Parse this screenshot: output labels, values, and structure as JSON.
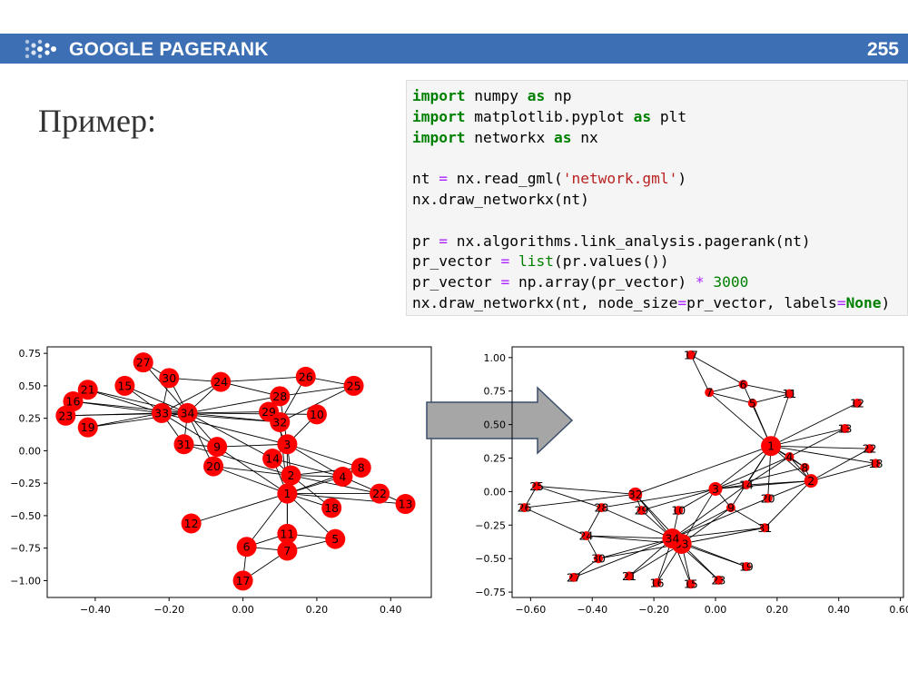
{
  "header": {
    "title": "GOOGLE PAGERANK",
    "page_number": "255",
    "bg_color": "#3d6fb4"
  },
  "heading": "Пример:",
  "code_lines": [
    [
      {
        "t": "import",
        "c": "kw"
      },
      {
        "t": " numpy "
      },
      {
        "t": "as",
        "c": "kw"
      },
      {
        "t": " np"
      }
    ],
    [
      {
        "t": "import",
        "c": "kw"
      },
      {
        "t": " matplotlib.pyplot "
      },
      {
        "t": "as",
        "c": "kw"
      },
      {
        "t": " plt"
      }
    ],
    [
      {
        "t": "import",
        "c": "kw"
      },
      {
        "t": " networkx "
      },
      {
        "t": "as",
        "c": "kw"
      },
      {
        "t": " nx"
      }
    ],
    [],
    [
      {
        "t": "nt "
      },
      {
        "t": "=",
        "c": "op"
      },
      {
        "t": " nx.read_gml("
      },
      {
        "t": "'network.gml'",
        "c": "str"
      },
      {
        "t": ")"
      }
    ],
    [
      {
        "t": "nx.draw_networkx(nt)"
      }
    ],
    [],
    [
      {
        "t": "pr "
      },
      {
        "t": "=",
        "c": "op"
      },
      {
        "t": " nx.algorithms.link_analysis.pagerank(nt)"
      }
    ],
    [
      {
        "t": "pr_vector "
      },
      {
        "t": "=",
        "c": "op"
      },
      {
        "t": " "
      },
      {
        "t": "list",
        "c": "fn"
      },
      {
        "t": "(pr.values())"
      }
    ],
    [
      {
        "t": "pr_vector "
      },
      {
        "t": "=",
        "c": "op"
      },
      {
        "t": " np.array(pr_vector) "
      },
      {
        "t": "*",
        "c": "op"
      },
      {
        "t": " "
      },
      {
        "t": "3000",
        "c": "num"
      }
    ],
    [
      {
        "t": "nx.draw_networkx(nt, node_size"
      },
      {
        "t": "=",
        "c": "op"
      },
      {
        "t": "pr_vector, labels"
      },
      {
        "t": "=",
        "c": "op"
      },
      {
        "t": "None",
        "c": "kw"
      },
      {
        "t": ")"
      }
    ]
  ],
  "chart_data": [
    {
      "type": "scatter",
      "title": "",
      "xlabel": "",
      "ylabel": "",
      "xlim": [
        -0.53,
        0.51
      ],
      "ylim": [
        -1.13,
        0.8
      ],
      "xticks": [
        -0.4,
        -0.2,
        0.0,
        0.2,
        0.4
      ],
      "yticks": [
        0.75,
        0.5,
        0.25,
        0.0,
        -0.25,
        -0.5,
        -0.75,
        -1.0
      ],
      "node_color": "#ff0000",
      "nodes": [
        {
          "id": "1",
          "x": 0.12,
          "y": -0.33
        },
        {
          "id": "2",
          "x": 0.13,
          "y": -0.19
        },
        {
          "id": "3",
          "x": 0.12,
          "y": 0.05
        },
        {
          "id": "4",
          "x": 0.27,
          "y": -0.2
        },
        {
          "id": "5",
          "x": 0.25,
          "y": -0.68
        },
        {
          "id": "6",
          "x": 0.01,
          "y": -0.74
        },
        {
          "id": "7",
          "x": 0.12,
          "y": -0.77
        },
        {
          "id": "8",
          "x": 0.32,
          "y": -0.13
        },
        {
          "id": "9",
          "x": -0.07,
          "y": 0.03
        },
        {
          "id": "10",
          "x": 0.2,
          "y": 0.28
        },
        {
          "id": "11",
          "x": 0.12,
          "y": -0.64
        },
        {
          "id": "12",
          "x": -0.14,
          "y": -0.56
        },
        {
          "id": "13",
          "x": 0.44,
          "y": -0.41
        },
        {
          "id": "14",
          "x": 0.08,
          "y": -0.06
        },
        {
          "id": "15",
          "x": -0.32,
          "y": 0.5
        },
        {
          "id": "16",
          "x": -0.46,
          "y": 0.38
        },
        {
          "id": "17",
          "x": 0.0,
          "y": -1.0
        },
        {
          "id": "18",
          "x": 0.24,
          "y": -0.44
        },
        {
          "id": "19",
          "x": -0.42,
          "y": 0.18
        },
        {
          "id": "20",
          "x": -0.08,
          "y": -0.12
        },
        {
          "id": "21",
          "x": -0.42,
          "y": 0.47
        },
        {
          "id": "22",
          "x": 0.37,
          "y": -0.33
        },
        {
          "id": "23",
          "x": -0.48,
          "y": 0.27
        },
        {
          "id": "24",
          "x": -0.06,
          "y": 0.53
        },
        {
          "id": "25",
          "x": 0.3,
          "y": 0.5
        },
        {
          "id": "26",
          "x": 0.17,
          "y": 0.57
        },
        {
          "id": "27",
          "x": -0.27,
          "y": 0.68
        },
        {
          "id": "28",
          "x": 0.1,
          "y": 0.42
        },
        {
          "id": "29",
          "x": 0.07,
          "y": 0.3
        },
        {
          "id": "30",
          "x": -0.2,
          "y": 0.56
        },
        {
          "id": "31",
          "x": -0.16,
          "y": 0.05
        },
        {
          "id": "32",
          "x": 0.1,
          "y": 0.22
        },
        {
          "id": "33",
          "x": -0.22,
          "y": 0.29
        },
        {
          "id": "34",
          "x": -0.15,
          "y": 0.29
        }
      ],
      "edges": [
        [
          "1",
          "2"
        ],
        [
          "1",
          "3"
        ],
        [
          "1",
          "4"
        ],
        [
          "1",
          "5"
        ],
        [
          "1",
          "6"
        ],
        [
          "1",
          "7"
        ],
        [
          "1",
          "8"
        ],
        [
          "1",
          "9"
        ],
        [
          "1",
          "11"
        ],
        [
          "1",
          "12"
        ],
        [
          "1",
          "13"
        ],
        [
          "1",
          "14"
        ],
        [
          "1",
          "18"
        ],
        [
          "1",
          "20"
        ],
        [
          "1",
          "22"
        ],
        [
          "1",
          "32"
        ],
        [
          "2",
          "3"
        ],
        [
          "2",
          "4"
        ],
        [
          "2",
          "8"
        ],
        [
          "2",
          "14"
        ],
        [
          "2",
          "18"
        ],
        [
          "2",
          "20"
        ],
        [
          "2",
          "22"
        ],
        [
          "2",
          "31"
        ],
        [
          "3",
          "4"
        ],
        [
          "3",
          "8"
        ],
        [
          "3",
          "9"
        ],
        [
          "3",
          "10"
        ],
        [
          "3",
          "14"
        ],
        [
          "3",
          "28"
        ],
        [
          "3",
          "29"
        ],
        [
          "3",
          "33"
        ],
        [
          "4",
          "8"
        ],
        [
          "4",
          "13"
        ],
        [
          "4",
          "14"
        ],
        [
          "5",
          "7"
        ],
        [
          "5",
          "11"
        ],
        [
          "6",
          "7"
        ],
        [
          "6",
          "11"
        ],
        [
          "6",
          "17"
        ],
        [
          "7",
          "17"
        ],
        [
          "9",
          "31"
        ],
        [
          "9",
          "33"
        ],
        [
          "9",
          "34"
        ],
        [
          "10",
          "34"
        ],
        [
          "14",
          "34"
        ],
        [
          "15",
          "33"
        ],
        [
          "15",
          "34"
        ],
        [
          "16",
          "33"
        ],
        [
          "16",
          "34"
        ],
        [
          "19",
          "33"
        ],
        [
          "19",
          "34"
        ],
        [
          "20",
          "34"
        ],
        [
          "21",
          "33"
        ],
        [
          "21",
          "34"
        ],
        [
          "23",
          "33"
        ],
        [
          "23",
          "34"
        ],
        [
          "24",
          "26"
        ],
        [
          "24",
          "28"
        ],
        [
          "24",
          "30"
        ],
        [
          "24",
          "33"
        ],
        [
          "24",
          "34"
        ],
        [
          "25",
          "26"
        ],
        [
          "25",
          "28"
        ],
        [
          "25",
          "32"
        ],
        [
          "26",
          "32"
        ],
        [
          "27",
          "30"
        ],
        [
          "27",
          "34"
        ],
        [
          "28",
          "34"
        ],
        [
          "29",
          "32"
        ],
        [
          "29",
          "34"
        ],
        [
          "30",
          "33"
        ],
        [
          "30",
          "34"
        ],
        [
          "31",
          "33"
        ],
        [
          "31",
          "34"
        ],
        [
          "32",
          "33"
        ],
        [
          "32",
          "34"
        ],
        [
          "33",
          "34"
        ]
      ]
    },
    {
      "type": "scatter",
      "title": "",
      "xlabel": "",
      "ylabel": "",
      "xlim": [
        -0.66,
        0.61
      ],
      "ylim": [
        -0.79,
        1.08
      ],
      "xticks": [
        -0.6,
        -0.4,
        -0.2,
        0.0,
        0.2,
        0.4,
        0.6
      ],
      "yticks": [
        1.0,
        0.75,
        0.5,
        0.25,
        0.0,
        -0.25,
        -0.5,
        -0.75
      ],
      "node_color": "#ff0000",
      "nodes": [
        {
          "id": "1",
          "x": 0.18,
          "y": 0.34
        },
        {
          "id": "2",
          "x": 0.31,
          "y": 0.08
        },
        {
          "id": "3",
          "x": 0.0,
          "y": 0.02
        },
        {
          "id": "4",
          "x": 0.24,
          "y": 0.26
        },
        {
          "id": "5",
          "x": 0.12,
          "y": 0.66
        },
        {
          "id": "6",
          "x": 0.09,
          "y": 0.8
        },
        {
          "id": "7",
          "x": -0.02,
          "y": 0.74
        },
        {
          "id": "8",
          "x": 0.29,
          "y": 0.18
        },
        {
          "id": "9",
          "x": 0.05,
          "y": -0.12
        },
        {
          "id": "10",
          "x": -0.12,
          "y": -0.14
        },
        {
          "id": "11",
          "x": 0.24,
          "y": 0.73
        },
        {
          "id": "12",
          "x": 0.46,
          "y": 0.66
        },
        {
          "id": "13",
          "x": 0.42,
          "y": 0.47
        },
        {
          "id": "14",
          "x": 0.1,
          "y": 0.05
        },
        {
          "id": "15",
          "x": -0.08,
          "y": -0.69
        },
        {
          "id": "16",
          "x": -0.19,
          "y": -0.68
        },
        {
          "id": "17",
          "x": -0.08,
          "y": 1.02
        },
        {
          "id": "18",
          "x": 0.52,
          "y": 0.21
        },
        {
          "id": "19",
          "x": 0.1,
          "y": -0.56
        },
        {
          "id": "20",
          "x": 0.17,
          "y": -0.05
        },
        {
          "id": "21",
          "x": -0.28,
          "y": -0.63
        },
        {
          "id": "22",
          "x": 0.5,
          "y": 0.32
        },
        {
          "id": "23",
          "x": 0.01,
          "y": -0.66
        },
        {
          "id": "24",
          "x": -0.42,
          "y": -0.33
        },
        {
          "id": "25",
          "x": -0.58,
          "y": 0.04
        },
        {
          "id": "26",
          "x": -0.62,
          "y": -0.12
        },
        {
          "id": "27",
          "x": -0.46,
          "y": -0.64
        },
        {
          "id": "28",
          "x": -0.37,
          "y": -0.12
        },
        {
          "id": "29",
          "x": -0.24,
          "y": -0.14
        },
        {
          "id": "30",
          "x": -0.38,
          "y": -0.5
        },
        {
          "id": "31",
          "x": 0.16,
          "y": -0.27
        },
        {
          "id": "32",
          "x": -0.26,
          "y": -0.02
        },
        {
          "id": "33",
          "x": -0.11,
          "y": -0.39
        },
        {
          "id": "34",
          "x": -0.14,
          "y": -0.35
        }
      ],
      "edges": [
        [
          "1",
          "2"
        ],
        [
          "1",
          "3"
        ],
        [
          "1",
          "4"
        ],
        [
          "1",
          "5"
        ],
        [
          "1",
          "6"
        ],
        [
          "1",
          "7"
        ],
        [
          "1",
          "8"
        ],
        [
          "1",
          "9"
        ],
        [
          "1",
          "11"
        ],
        [
          "1",
          "12"
        ],
        [
          "1",
          "13"
        ],
        [
          "1",
          "14"
        ],
        [
          "1",
          "18"
        ],
        [
          "1",
          "20"
        ],
        [
          "1",
          "22"
        ],
        [
          "1",
          "32"
        ],
        [
          "2",
          "3"
        ],
        [
          "2",
          "4"
        ],
        [
          "2",
          "8"
        ],
        [
          "2",
          "14"
        ],
        [
          "2",
          "18"
        ],
        [
          "2",
          "20"
        ],
        [
          "2",
          "22"
        ],
        [
          "2",
          "31"
        ],
        [
          "3",
          "4"
        ],
        [
          "3",
          "8"
        ],
        [
          "3",
          "9"
        ],
        [
          "3",
          "10"
        ],
        [
          "3",
          "14"
        ],
        [
          "3",
          "28"
        ],
        [
          "3",
          "29"
        ],
        [
          "3",
          "33"
        ],
        [
          "4",
          "8"
        ],
        [
          "4",
          "13"
        ],
        [
          "4",
          "14"
        ],
        [
          "5",
          "7"
        ],
        [
          "5",
          "11"
        ],
        [
          "6",
          "7"
        ],
        [
          "6",
          "11"
        ],
        [
          "6",
          "17"
        ],
        [
          "7",
          "17"
        ],
        [
          "9",
          "31"
        ],
        [
          "9",
          "33"
        ],
        [
          "9",
          "34"
        ],
        [
          "10",
          "34"
        ],
        [
          "14",
          "34"
        ],
        [
          "15",
          "33"
        ],
        [
          "15",
          "34"
        ],
        [
          "16",
          "33"
        ],
        [
          "16",
          "34"
        ],
        [
          "19",
          "33"
        ],
        [
          "19",
          "34"
        ],
        [
          "20",
          "34"
        ],
        [
          "21",
          "33"
        ],
        [
          "21",
          "34"
        ],
        [
          "23",
          "33"
        ],
        [
          "23",
          "34"
        ],
        [
          "24",
          "26"
        ],
        [
          "24",
          "28"
        ],
        [
          "24",
          "30"
        ],
        [
          "24",
          "33"
        ],
        [
          "24",
          "34"
        ],
        [
          "25",
          "26"
        ],
        [
          "25",
          "28"
        ],
        [
          "25",
          "32"
        ],
        [
          "26",
          "32"
        ],
        [
          "27",
          "30"
        ],
        [
          "27",
          "34"
        ],
        [
          "28",
          "34"
        ],
        [
          "29",
          "32"
        ],
        [
          "29",
          "34"
        ],
        [
          "30",
          "33"
        ],
        [
          "30",
          "34"
        ],
        [
          "31",
          "33"
        ],
        [
          "31",
          "34"
        ],
        [
          "32",
          "33"
        ],
        [
          "32",
          "34"
        ],
        [
          "33",
          "34"
        ]
      ],
      "node_sizes": {
        "1": "large",
        "3": "medium",
        "33": "large",
        "34": "large",
        "2": "medium",
        "32": "medium",
        "others": "small"
      }
    }
  ],
  "arrow": {
    "icon": "right-arrow-icon",
    "fill": "#a6a6a6"
  }
}
